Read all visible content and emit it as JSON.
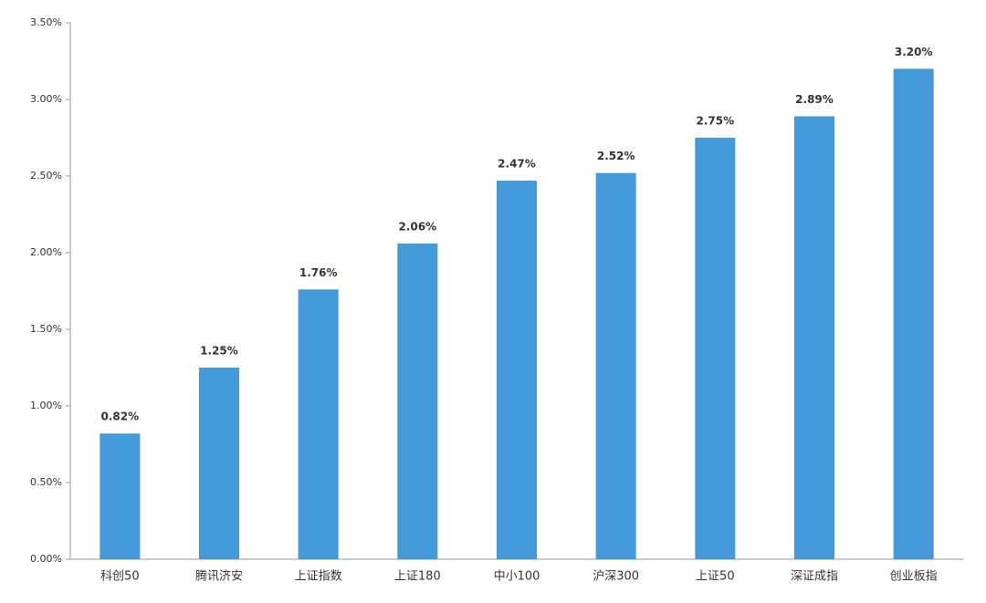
{
  "chart_data": {
    "type": "bar",
    "categories": [
      "科创50",
      "腾讯济安",
      "上证指数",
      "上证180",
      "中小100",
      "沪深300",
      "上证50",
      "深证成指",
      "创业板指"
    ],
    "values": [
      0.82,
      1.25,
      1.76,
      2.06,
      2.47,
      2.52,
      2.75,
      2.89,
      3.2
    ],
    "value_labels": [
      "0.82%",
      "1.25%",
      "1.76%",
      "2.06%",
      "2.47%",
      "2.52%",
      "2.75%",
      "2.89%",
      "3.20%"
    ],
    "color": "#4499d9",
    "ylim": [
      0,
      3.5
    ],
    "yticks": [
      {
        "value": 0,
        "label": "0.00%"
      },
      {
        "value": 0.5,
        "label": "0.50%"
      },
      {
        "value": 1,
        "label": "1.00%"
      },
      {
        "value": 1.5,
        "label": "1.50%"
      },
      {
        "value": 2,
        "label": "2.00%"
      },
      {
        "value": 2.5,
        "label": "2.50%"
      },
      {
        "value": 3,
        "label": "3.00%"
      },
      {
        "value": 3.5,
        "label": "3.50%"
      }
    ],
    "grid": false
  }
}
